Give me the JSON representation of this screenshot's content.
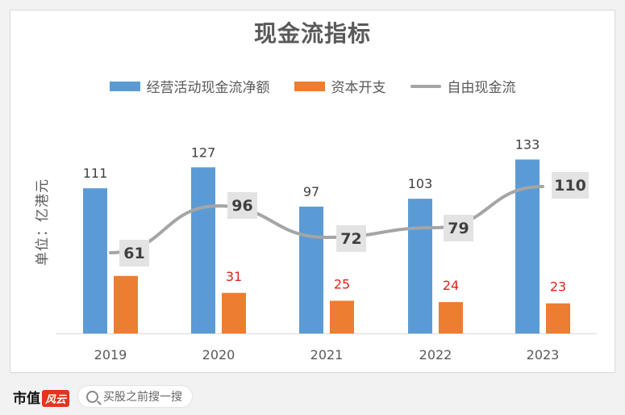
{
  "chart_data": {
    "type": "bar",
    "title": "现金流指标",
    "ylabel": "单位：亿港元",
    "categories": [
      "2019",
      "2020",
      "2021",
      "2022",
      "2023"
    ],
    "series": [
      {
        "name": "经营活动现金流净额",
        "type": "bar",
        "color": "#5b9bd5",
        "values": [
          111,
          127,
          97,
          103,
          133
        ]
      },
      {
        "name": "资本开支",
        "type": "bar",
        "color": "#ed7d31",
        "values": [
          44,
          31,
          25,
          24,
          23
        ]
      },
      {
        "name": "自由现金流",
        "type": "line",
        "color": "#a5a5a5",
        "values": [
          61,
          96,
          72,
          79,
          110
        ]
      }
    ],
    "ylim": [
      0,
      150
    ],
    "legend_position": "top",
    "grid": false
  },
  "footer": {
    "brand": "市值",
    "brand_logo": "风云",
    "search_placeholder": "买股之前搜一搜"
  }
}
